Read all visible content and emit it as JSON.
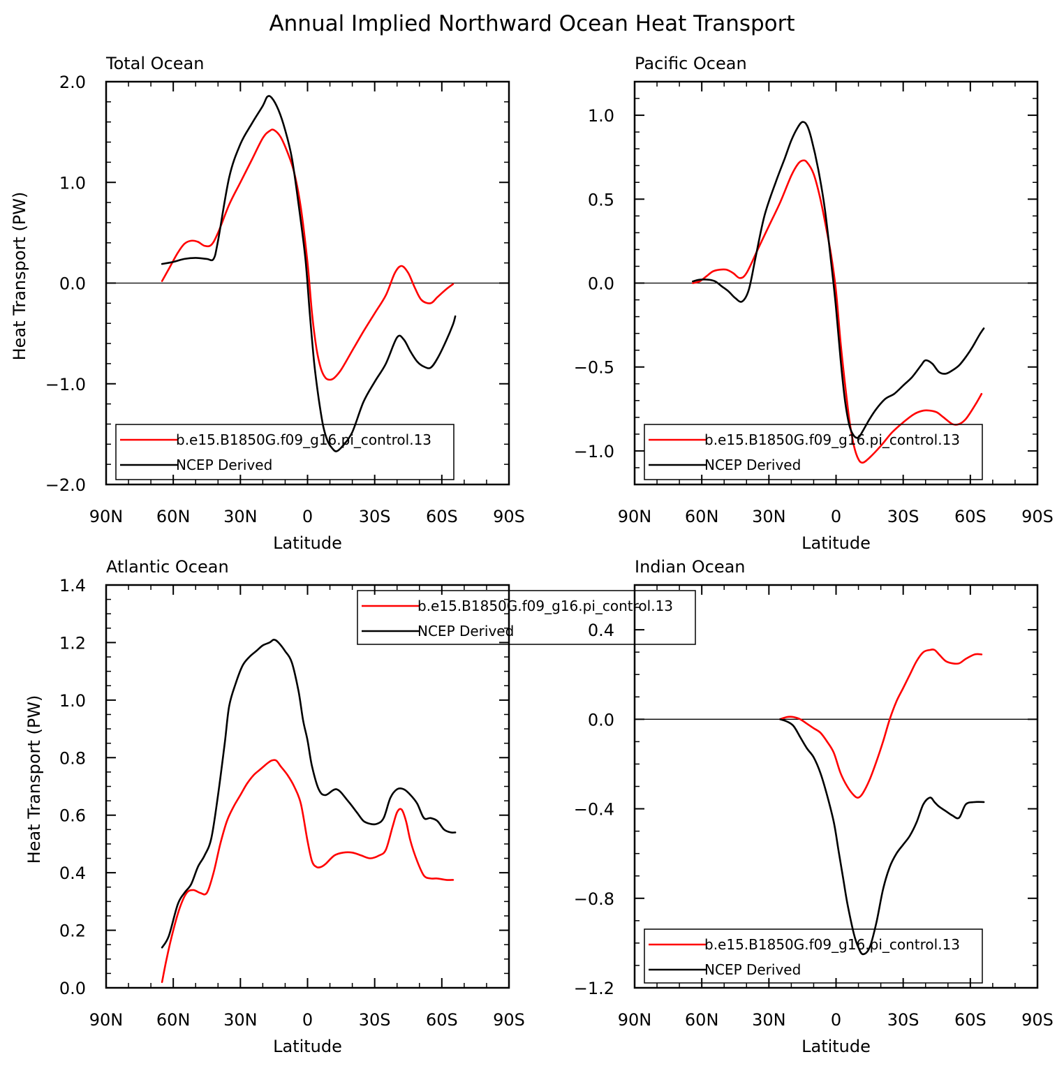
{
  "title": "Annual Implied Northward Ocean Heat Transport",
  "chart_data": [
    {
      "type": "line",
      "panel_title": "Total Ocean",
      "xlabel": "Latitude",
      "ylabel": "Heat Transport (PW)",
      "xlim": [
        90,
        -90
      ],
      "ylim": [
        -2.0,
        2.0
      ],
      "x_major_ticks": [
        90,
        60,
        30,
        0,
        -30,
        -60,
        -90
      ],
      "x_tick_labels": [
        "90N",
        "60N",
        "30N",
        "0",
        "30S",
        "60S",
        "90S"
      ],
      "y_major_ticks": [
        -2.0,
        -1.0,
        0.0,
        1.0,
        2.0
      ],
      "y_tick_labels": [
        "−2.0",
        "−1.0",
        "0.0",
        "1.0",
        "2.0"
      ],
      "y_minor_step": 0.2,
      "zero_line": true,
      "legend_position": "bottom-left",
      "series": [
        {
          "name": "b.e15.B1850G.f09_g16.pi_control.13",
          "color": "#ff0000",
          "x": [
            65,
            62,
            58,
            55,
            52,
            49,
            46,
            43,
            40,
            35,
            30,
            25,
            20,
            17,
            15,
            12,
            9,
            6,
            3,
            0,
            -2,
            -4,
            -6,
            -8,
            -10,
            -12,
            -15,
            -20,
            -25,
            -30,
            -35,
            -39,
            -42,
            -45,
            -48,
            -51,
            -55,
            -58,
            -62,
            -65
          ],
          "y": [
            0.02,
            0.14,
            0.3,
            0.39,
            0.42,
            0.41,
            0.37,
            0.38,
            0.5,
            0.78,
            1.0,
            1.22,
            1.44,
            1.51,
            1.52,
            1.45,
            1.3,
            1.1,
            0.75,
            0.2,
            -0.3,
            -0.65,
            -0.85,
            -0.94,
            -0.96,
            -0.94,
            -0.86,
            -0.67,
            -0.48,
            -0.3,
            -0.12,
            0.1,
            0.17,
            0.1,
            -0.05,
            -0.17,
            -0.2,
            -0.14,
            -0.06,
            -0.01
          ]
        },
        {
          "name": "NCEP Derived",
          "color": "#000000",
          "x": [
            65,
            60,
            55,
            50,
            45,
            42,
            40,
            35,
            30,
            25,
            20,
            18,
            16,
            13,
            10,
            7,
            4,
            1,
            -1,
            -3,
            -5,
            -7,
            -9,
            -11,
            -13,
            -16,
            -20,
            -25,
            -30,
            -35,
            -40,
            -43,
            -46,
            -49,
            -52,
            -55,
            -58,
            -62,
            -65,
            -66
          ],
          "y": [
            0.19,
            0.21,
            0.24,
            0.25,
            0.24,
            0.24,
            0.42,
            1.05,
            1.38,
            1.58,
            1.76,
            1.85,
            1.84,
            1.72,
            1.52,
            1.24,
            0.78,
            0.25,
            -0.3,
            -0.8,
            -1.15,
            -1.42,
            -1.57,
            -1.64,
            -1.67,
            -1.61,
            -1.48,
            -1.18,
            -0.98,
            -0.8,
            -0.54,
            -0.56,
            -0.68,
            -0.78,
            -0.83,
            -0.84,
            -0.75,
            -0.57,
            -0.41,
            -0.33
          ]
        }
      ]
    },
    {
      "type": "line",
      "panel_title": "Pacific Ocean",
      "xlabel": "Latitude",
      "ylabel": "",
      "xlim": [
        90,
        -90
      ],
      "ylim": [
        -1.2,
        1.2
      ],
      "x_major_ticks": [
        90,
        60,
        30,
        0,
        -30,
        -60,
        -90
      ],
      "x_tick_labels": [
        "90N",
        "60N",
        "30N",
        "0",
        "30S",
        "60S",
        "90S"
      ],
      "y_major_ticks": [
        -1.0,
        -0.5,
        0.0,
        0.5,
        1.0
      ],
      "y_tick_labels": [
        "−1.0",
        "−0.5",
        "0.0",
        "0.5",
        "1.0"
      ],
      "y_minor_step": 0.1,
      "zero_line": true,
      "legend_position": "bottom-left",
      "series": [
        {
          "name": "b.e15.B1850G.f09_g16.pi_control.13",
          "color": "#ff0000",
          "x": [
            64,
            61,
            58,
            55,
            52,
            49,
            46,
            43,
            40,
            35,
            30,
            25,
            20,
            17,
            15,
            13,
            10,
            7,
            4,
            2,
            0,
            -2,
            -4,
            -6,
            -8,
            -10,
            -12,
            -15,
            -20,
            -25,
            -30,
            -35,
            -39,
            -42,
            -45,
            -48,
            -52,
            -55,
            -58,
            -62,
            -65
          ],
          "y": [
            0.0,
            0.01,
            0.04,
            0.07,
            0.08,
            0.08,
            0.06,
            0.03,
            0.06,
            0.2,
            0.34,
            0.48,
            0.64,
            0.71,
            0.73,
            0.72,
            0.65,
            0.5,
            0.3,
            0.15,
            -0.05,
            -0.35,
            -0.6,
            -0.82,
            -0.97,
            -1.05,
            -1.07,
            -1.04,
            -0.97,
            -0.89,
            -0.83,
            -0.78,
            -0.76,
            -0.76,
            -0.77,
            -0.8,
            -0.84,
            -0.84,
            -0.81,
            -0.73,
            -0.66
          ]
        },
        {
          "name": "NCEP Derived",
          "color": "#000000",
          "x": [
            64,
            61,
            57,
            54,
            51,
            48,
            45,
            42,
            39,
            36,
            32,
            27,
            23,
            20,
            17,
            15,
            13,
            11,
            8,
            5,
            2,
            0,
            -2,
            -4,
            -6,
            -8,
            -10,
            -12,
            -15,
            -18,
            -22,
            -26,
            -30,
            -34,
            -38,
            -40,
            -43,
            -46,
            -49,
            -52,
            -55,
            -58,
            -61,
            -64,
            -66
          ],
          "y": [
            0.01,
            0.02,
            0.02,
            0.01,
            -0.02,
            -0.05,
            -0.09,
            -0.11,
            -0.04,
            0.15,
            0.4,
            0.6,
            0.74,
            0.85,
            0.93,
            0.96,
            0.94,
            0.86,
            0.68,
            0.44,
            0.1,
            -0.15,
            -0.45,
            -0.7,
            -0.85,
            -0.91,
            -0.92,
            -0.88,
            -0.81,
            -0.75,
            -0.69,
            -0.66,
            -0.61,
            -0.56,
            -0.49,
            -0.46,
            -0.48,
            -0.53,
            -0.54,
            -0.52,
            -0.49,
            -0.44,
            -0.38,
            -0.31,
            -0.27
          ]
        }
      ]
    },
    {
      "type": "line",
      "panel_title": "Atlantic Ocean",
      "xlabel": "Latitude",
      "ylabel": "Heat Transport (PW)",
      "xlim": [
        90,
        -90
      ],
      "ylim": [
        0.0,
        1.4
      ],
      "x_major_ticks": [
        90,
        60,
        30,
        0,
        -30,
        -60,
        -90
      ],
      "x_tick_labels": [
        "90N",
        "60N",
        "30N",
        "0",
        "30S",
        "60S",
        "90S"
      ],
      "y_major_ticks": [
        0.0,
        0.2,
        0.4,
        0.6,
        0.8,
        1.0,
        1.2,
        1.4
      ],
      "y_tick_labels": [
        "0.0",
        "0.2",
        "0.4",
        "0.6",
        "0.8",
        "1.0",
        "1.2",
        "1.4"
      ],
      "y_minor_step": 0.05,
      "zero_line": false,
      "legend_position": "top-center",
      "series": [
        {
          "name": "b.e15.B1850G.f09_g16.pi_control.13",
          "color": "#ff0000",
          "x": [
            65,
            63,
            60,
            57,
            54,
            51,
            48,
            45,
            42,
            39,
            36,
            33,
            30,
            27,
            24,
            21,
            18,
            16,
            14,
            12,
            9,
            6,
            3,
            0,
            -2,
            -4,
            -6,
            -8,
            -12,
            -16,
            -20,
            -24,
            -28,
            -32,
            -35,
            -38,
            -40,
            -42,
            -44,
            -46,
            -49,
            -52,
            -55,
            -58,
            -62,
            -65
          ],
          "y": [
            0.02,
            0.1,
            0.2,
            0.28,
            0.33,
            0.34,
            0.33,
            0.33,
            0.4,
            0.5,
            0.58,
            0.63,
            0.67,
            0.71,
            0.74,
            0.76,
            0.78,
            0.79,
            0.79,
            0.77,
            0.74,
            0.7,
            0.64,
            0.51,
            0.44,
            0.42,
            0.42,
            0.43,
            0.46,
            0.47,
            0.47,
            0.46,
            0.45,
            0.46,
            0.48,
            0.56,
            0.61,
            0.62,
            0.58,
            0.51,
            0.44,
            0.39,
            0.38,
            0.38,
            0.375,
            0.375
          ]
        },
        {
          "name": "NCEP Derived",
          "color": "#000000",
          "x": [
            65,
            62,
            58,
            55,
            52,
            49,
            46,
            43,
            40,
            37,
            35,
            32,
            29,
            26,
            23,
            20,
            17,
            15,
            13,
            10,
            7,
            4,
            2,
            0,
            -2,
            -5,
            -8,
            -13,
            -18,
            -22,
            -25,
            -28,
            -31,
            -34,
            -37,
            -40,
            -43,
            -46,
            -49,
            -52,
            -55,
            -58,
            -61,
            -64,
            -66
          ],
          "y": [
            0.14,
            0.18,
            0.29,
            0.33,
            0.36,
            0.42,
            0.46,
            0.52,
            0.67,
            0.85,
            0.98,
            1.06,
            1.12,
            1.15,
            1.17,
            1.19,
            1.2,
            1.21,
            1.2,
            1.17,
            1.13,
            1.03,
            0.93,
            0.86,
            0.77,
            0.69,
            0.67,
            0.69,
            0.65,
            0.61,
            0.58,
            0.57,
            0.57,
            0.59,
            0.66,
            0.69,
            0.69,
            0.67,
            0.64,
            0.59,
            0.59,
            0.58,
            0.55,
            0.54,
            0.54
          ]
        }
      ]
    },
    {
      "type": "line",
      "panel_title": "Indian Ocean",
      "xlabel": "Latitude",
      "ylabel": "",
      "xlim": [
        90,
        -90
      ],
      "ylim": [
        -1.2,
        0.6
      ],
      "x_major_ticks": [
        90,
        60,
        30,
        0,
        -30,
        -60,
        -90
      ],
      "x_tick_labels": [
        "90N",
        "60N",
        "30N",
        "0",
        "30S",
        "60S",
        "90S"
      ],
      "y_major_ticks": [
        -1.2,
        -0.8,
        -0.4,
        0.0,
        0.4
      ],
      "y_tick_labels": [
        "−1.2",
        "−0.8",
        "−0.4",
        "0.0",
        "0.4"
      ],
      "y_minor_step": 0.1,
      "zero_line": true,
      "legend_position": "bottom-left",
      "series": [
        {
          "name": "b.e15.B1850G.f09_g16.pi_control.13",
          "color": "#ff0000",
          "x": [
            25,
            22,
            19,
            16,
            13,
            10,
            7,
            4,
            1,
            -2,
            -5,
            -8,
            -10,
            -12,
            -15,
            -18,
            -21,
            -24,
            -27,
            -30,
            -33,
            -36,
            -39,
            -42,
            -44,
            -46,
            -49,
            -52,
            -55,
            -58,
            -62,
            -65
          ],
          "y": [
            0.0,
            0.01,
            0.01,
            0.0,
            -0.02,
            -0.04,
            -0.06,
            -0.1,
            -0.15,
            -0.24,
            -0.3,
            -0.34,
            -0.35,
            -0.33,
            -0.27,
            -0.19,
            -0.1,
            0.0,
            0.08,
            0.14,
            0.2,
            0.26,
            0.3,
            0.31,
            0.31,
            0.29,
            0.26,
            0.25,
            0.25,
            0.27,
            0.29,
            0.29
          ]
        },
        {
          "name": "NCEP Derived",
          "color": "#000000",
          "x": [
            25,
            22,
            19,
            16,
            13,
            10,
            7,
            4,
            1,
            -1,
            -3,
            -5,
            -8,
            -10,
            -12,
            -15,
            -18,
            -21,
            -24,
            -27,
            -30,
            -33,
            -36,
            -39,
            -42,
            -44,
            -46,
            -49,
            -52,
            -55,
            -58,
            -62,
            -66
          ],
          "y": [
            0.0,
            -0.01,
            -0.03,
            -0.08,
            -0.13,
            -0.17,
            -0.24,
            -0.34,
            -0.46,
            -0.58,
            -0.7,
            -0.82,
            -0.96,
            -1.02,
            -1.05,
            -1.02,
            -0.91,
            -0.76,
            -0.66,
            -0.6,
            -0.56,
            -0.52,
            -0.46,
            -0.38,
            -0.35,
            -0.37,
            -0.39,
            -0.41,
            -0.43,
            -0.44,
            -0.38,
            -0.37,
            -0.37
          ]
        }
      ]
    }
  ]
}
